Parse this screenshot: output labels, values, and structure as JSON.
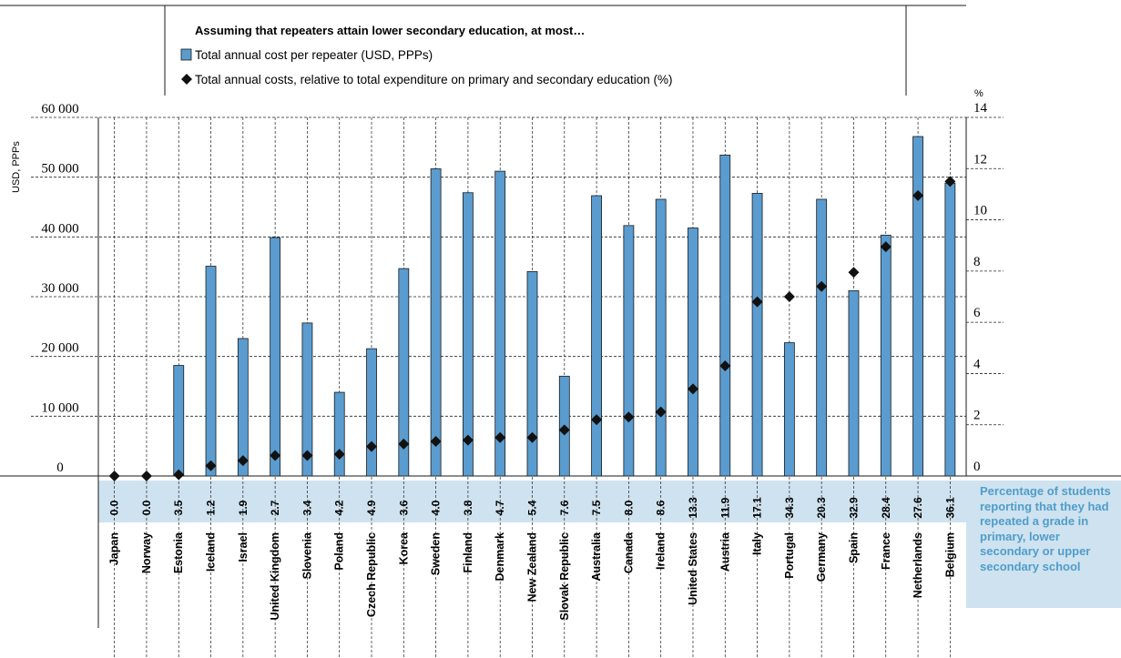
{
  "chart_data": {
    "type": "bar",
    "legend": {
      "title": "Assuming that repeaters attain lower secondary education, at most…",
      "bar_label": "Total annual cost per repeater (USD, PPPs)",
      "marker_label": "Total annual costs, relative to total expenditure on primary and secondary education (%)"
    },
    "left_axis": {
      "label": "USD, PPPs",
      "ylim": [
        0,
        60000
      ],
      "ticks": [
        "0",
        "10 000",
        "20 000",
        "30 000",
        "40 000",
        "50 000",
        "60 000"
      ],
      "tick_values": [
        0,
        10000,
        20000,
        30000,
        40000,
        50000,
        60000
      ]
    },
    "right_axis": {
      "label": "%",
      "ylim": [
        0,
        14
      ],
      "ticks": [
        "0",
        "2",
        "4",
        "6",
        "8",
        "10",
        "12",
        "14"
      ],
      "tick_values": [
        0,
        2,
        4,
        6,
        8,
        10,
        12,
        14
      ]
    },
    "categories": [
      "Japan",
      "Norway",
      "Estonia",
      "Iceland",
      "Israel",
      "United Kingdom",
      "Slovenia",
      "Poland",
      "Czech Republic",
      "Korea",
      "Sweden",
      "Finland",
      "Denmark",
      "New Zealand",
      "Slovak Republic",
      "Australia",
      "Canada",
      "Ireland",
      "United States",
      "Austria",
      "Italy",
      "Portugal",
      "Germany",
      "Spain",
      "France",
      "Netherlands",
      "Belgium"
    ],
    "series": [
      {
        "name": "Total annual cost per repeater (USD, PPPs)",
        "kind": "bar",
        "axis": "left",
        "color": "#5a9ccf",
        "values": [
          0,
          0,
          18500,
          35100,
          23000,
          39900,
          25600,
          14000,
          21300,
          34700,
          51400,
          47400,
          51000,
          34200,
          16700,
          46900,
          41900,
          46300,
          41500,
          53700,
          47300,
          22300,
          46300,
          31000,
          40300,
          56800,
          49000
        ]
      },
      {
        "name": "Total annual costs, relative to total expenditure on primary and secondary education (%)",
        "kind": "marker",
        "axis": "right",
        "color": "#111111",
        "values": [
          0,
          0,
          0.05,
          0.4,
          0.6,
          0.8,
          0.8,
          0.85,
          1.15,
          1.25,
          1.35,
          1.4,
          1.5,
          1.5,
          1.8,
          2.2,
          2.3,
          2.5,
          3.4,
          4.3,
          6.8,
          7.0,
          7.4,
          7.95,
          8.95,
          10.95,
          11.5
        ]
      }
    ],
    "repeat_pct": [
      "0.0",
      "0.0",
      "3.5",
      "1.2",
      "1.9",
      "2.7",
      "3.4",
      "4.2",
      "4.9",
      "3.6",
      "4.0",
      "3.8",
      "4.7",
      "5.4",
      "7.6",
      "7.5",
      "8.0",
      "8.6",
      "13.3",
      "11.9",
      "17.1",
      "34.3",
      "20.3",
      "32.9",
      "28.4",
      "27.6",
      "36.1"
    ],
    "repeat_note": "Percentage of students reporting that they had repeated a grade in primary, lower secondary or upper secondary school",
    "grid": true
  }
}
